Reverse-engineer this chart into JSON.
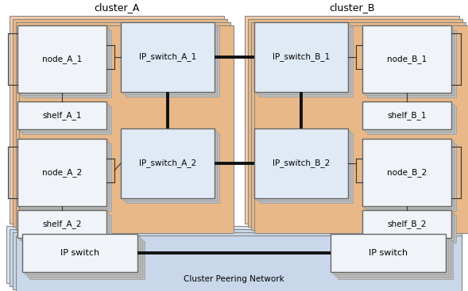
{
  "fig_width": 5.89,
  "fig_height": 3.67,
  "dpi": 100,
  "bg_color": "#ffffff",
  "cluster_fill": "#f5ccaa",
  "cluster_edge": "#888888",
  "peering_fill": "#dce6f1",
  "peering_edge": "#888888",
  "box_fill_top": "#e8eef8",
  "box_fill": "#f0f4f8",
  "box_edge": "#666666",
  "ip_switch_fill": "#e0eaf5",
  "ip_switch_edge": "#666666",
  "line_color": "#111111",
  "connector_color": "#333333",
  "text_color": "#000000",
  "cluster_A_label": "cluster_A",
  "cluster_B_label": "cluster_B",
  "peering_label": "Cluster Peering Network",
  "node_A_1": "node_A_1",
  "shelf_A_1": "shelf_A_1",
  "node_A_2": "node_A_2",
  "shelf_A_2": "shelf_A_2",
  "ip_switch_A_1": "IP_switch_A_1",
  "ip_switch_A_2": "IP_switch_A_2",
  "node_B_1": "node_B_1",
  "shelf_B_1": "shelf_B_1",
  "node_B_2": "node_B_2",
  "shelf_B_2": "shelf_B_2",
  "ip_switch_B_1": "IP_switch_B_1",
  "ip_switch_B_2": "IP_switch_B_2",
  "ip_switch_left": "IP switch",
  "ip_switch_right": "IP switch"
}
